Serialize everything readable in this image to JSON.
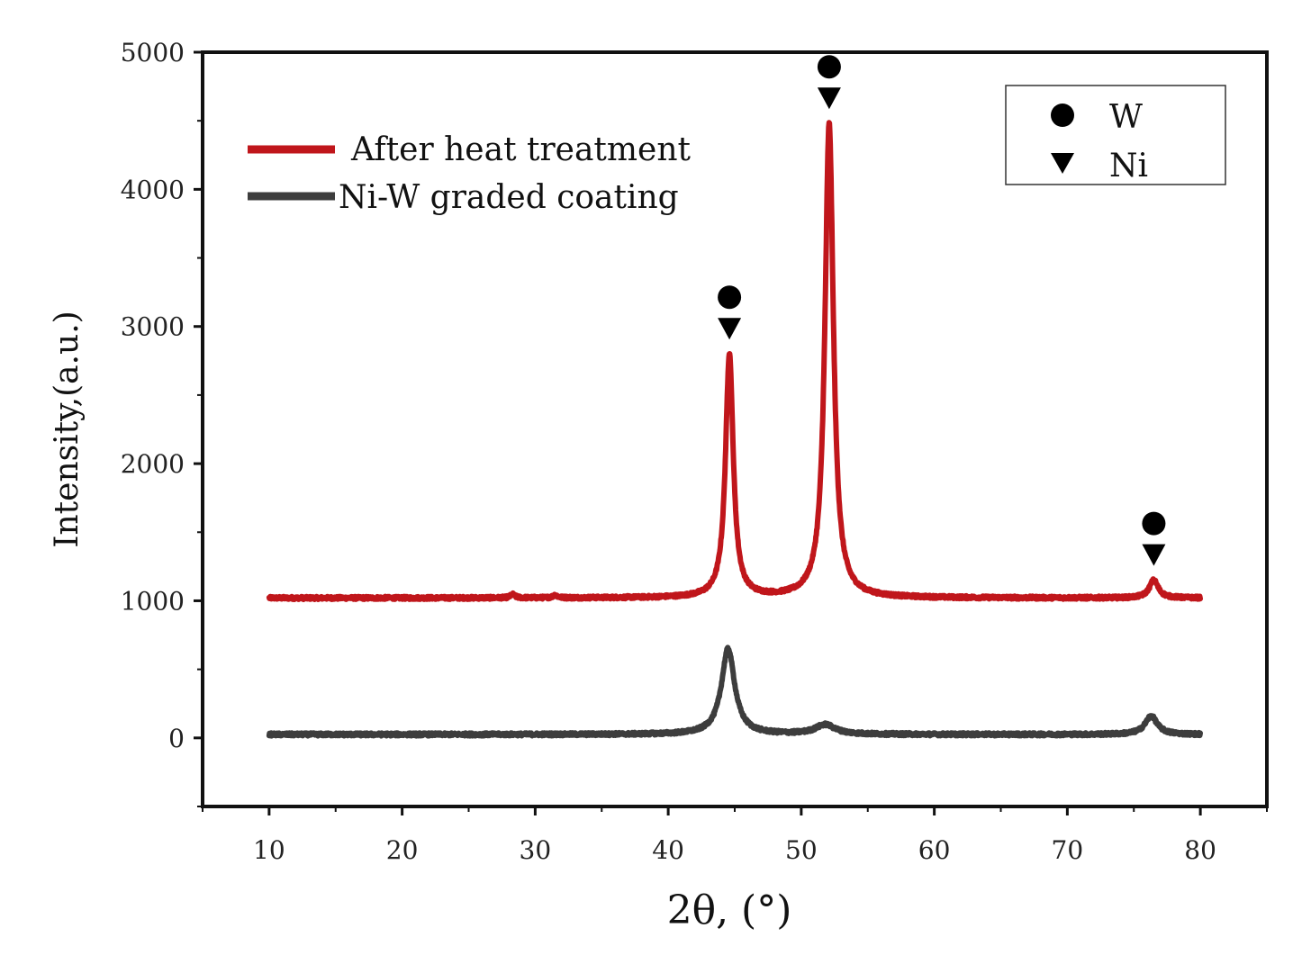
{
  "chart_data": {
    "type": "line",
    "title": "",
    "xlabel": "2θ, (°)",
    "ylabel": "Intensity,(a.u.)",
    "xlim": [
      5,
      85
    ],
    "ylim": [
      -500,
      5000
    ],
    "x_ticks": [
      10,
      20,
      30,
      40,
      50,
      60,
      70,
      80
    ],
    "y_ticks": [
      0,
      1000,
      2000,
      3000,
      4000,
      5000
    ],
    "x_tick_labels": [
      "10",
      "20",
      "30",
      "40",
      "50",
      "60",
      "70",
      "80"
    ],
    "y_tick_labels": [
      "0",
      "1000",
      "2000",
      "3000",
      "4000",
      "5000"
    ],
    "grid": false,
    "legend_position": "top-left",
    "series": [
      {
        "name": "After heat treatment",
        "color": "#c0161b",
        "baseline": 1020,
        "x_range": [
          10,
          80
        ],
        "peaks": [
          {
            "x": 44.6,
            "height": 2800,
            "width": 0.35
          },
          {
            "x": 52.1,
            "height": 4480,
            "width": 0.38
          },
          {
            "x": 76.5,
            "height": 1150,
            "width": 0.4
          },
          {
            "x": 28.3,
            "height": 1045,
            "width": 0.2
          },
          {
            "x": 31.5,
            "height": 1040,
            "width": 0.2
          }
        ]
      },
      {
        "name": "Ni-W graded coating",
        "color": "#3d3d3d",
        "baseline": 25,
        "x_range": [
          10,
          80
        ],
        "peaks": [
          {
            "x": 44.5,
            "height": 650,
            "width": 0.6
          },
          {
            "x": 51.8,
            "height": 95,
            "width": 0.9
          },
          {
            "x": 76.3,
            "height": 160,
            "width": 0.55
          }
        ]
      }
    ],
    "annotations": [
      {
        "x": 44.6,
        "marker_y": 2800,
        "markers": [
          "W",
          "Ni"
        ]
      },
      {
        "x": 52.1,
        "marker_y": 4480,
        "markers": [
          "W",
          "Ni"
        ]
      },
      {
        "x": 76.5,
        "marker_y": 1150,
        "markers": [
          "W",
          "Ni"
        ]
      }
    ],
    "marker_legend": [
      {
        "symbol": "circle",
        "label": "W"
      },
      {
        "symbol": "triangle-down",
        "label": "Ni"
      }
    ]
  }
}
